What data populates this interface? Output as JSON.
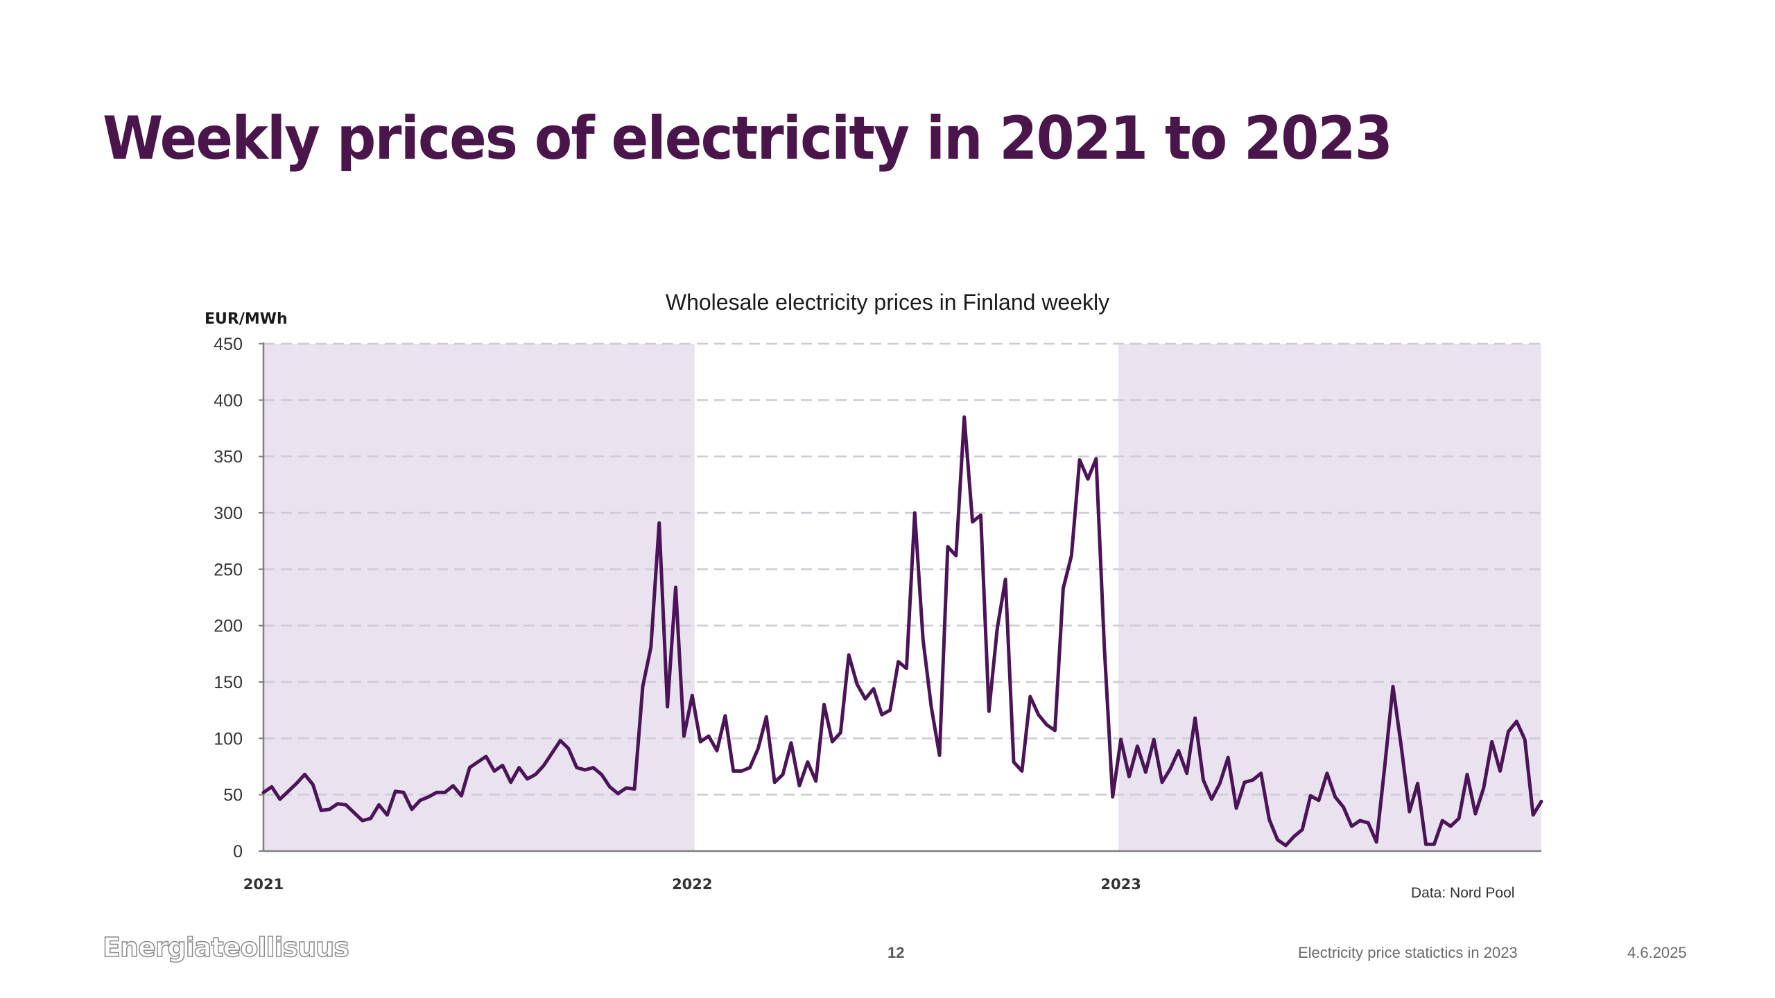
{
  "slide": {
    "title": "Weekly prices of electricity in 2021 to 2023"
  },
  "footer": {
    "logo": "Energiateollisuus",
    "page_number": "12",
    "document_title": "Electricity price statictics in 2023",
    "date": "4.6.2025"
  },
  "colors": {
    "title": "#4a154b",
    "line": "#4b1457",
    "shade": "#e8e3ee",
    "grid": "#cfcad6",
    "axis": "#7f7f7f"
  },
  "chart_data": {
    "type": "line",
    "title": "Wholesale electricity prices in Finland weekly",
    "ylabel": "EUR/MWh",
    "xlabel": "",
    "source_note": "Data: Nord Pool",
    "ylim": [
      0,
      450
    ],
    "yticks": [
      0,
      50,
      100,
      150,
      200,
      250,
      300,
      350,
      400,
      450
    ],
    "xtick_labels": [
      "2021",
      "2022",
      "2023"
    ],
    "grid": "horizontal dashed",
    "legend": "none",
    "shaded_periods": [
      "2021",
      "2023"
    ],
    "x_unit": "week",
    "series": [
      {
        "name": "Weekly price",
        "years": {
          "2021": [
            52,
            57,
            46,
            53,
            60,
            68,
            59,
            36,
            37,
            42,
            41,
            34,
            27,
            29,
            41,
            32,
            53,
            52,
            37,
            45,
            48,
            52,
            52,
            58,
            49,
            74,
            79,
            84,
            71,
            76,
            61,
            74,
            64,
            68,
            76,
            87,
            98,
            91,
            74,
            72,
            74,
            68,
            57,
            51,
            56,
            55,
            146,
            181,
            291,
            128,
            234,
            102
          ],
          "2022": [
            138,
            97,
            102,
            89,
            120,
            71,
            71,
            74,
            91,
            119,
            61,
            68,
            96,
            58,
            79,
            62,
            130,
            97,
            105,
            174,
            148,
            135,
            144,
            121,
            125,
            168,
            162,
            300,
            188,
            128,
            85,
            270,
            262,
            385,
            292,
            298,
            124,
            197,
            241,
            79,
            71,
            137,
            121,
            112,
            107,
            233,
            262,
            347,
            330,
            348,
            180,
            48
          ],
          "2023": [
            99,
            66,
            93,
            70,
            99,
            61,
            73,
            89,
            69,
            118,
            63,
            46,
            60,
            83,
            38,
            61,
            63,
            69,
            28,
            10,
            5,
            13,
            19,
            49,
            45,
            69,
            48,
            39,
            22,
            27,
            25,
            8,
            75,
            146,
            93,
            35,
            60,
            6,
            6,
            27,
            22,
            29,
            68,
            33,
            56,
            97,
            71,
            106,
            115,
            99,
            32,
            44
          ]
        }
      }
    ]
  }
}
